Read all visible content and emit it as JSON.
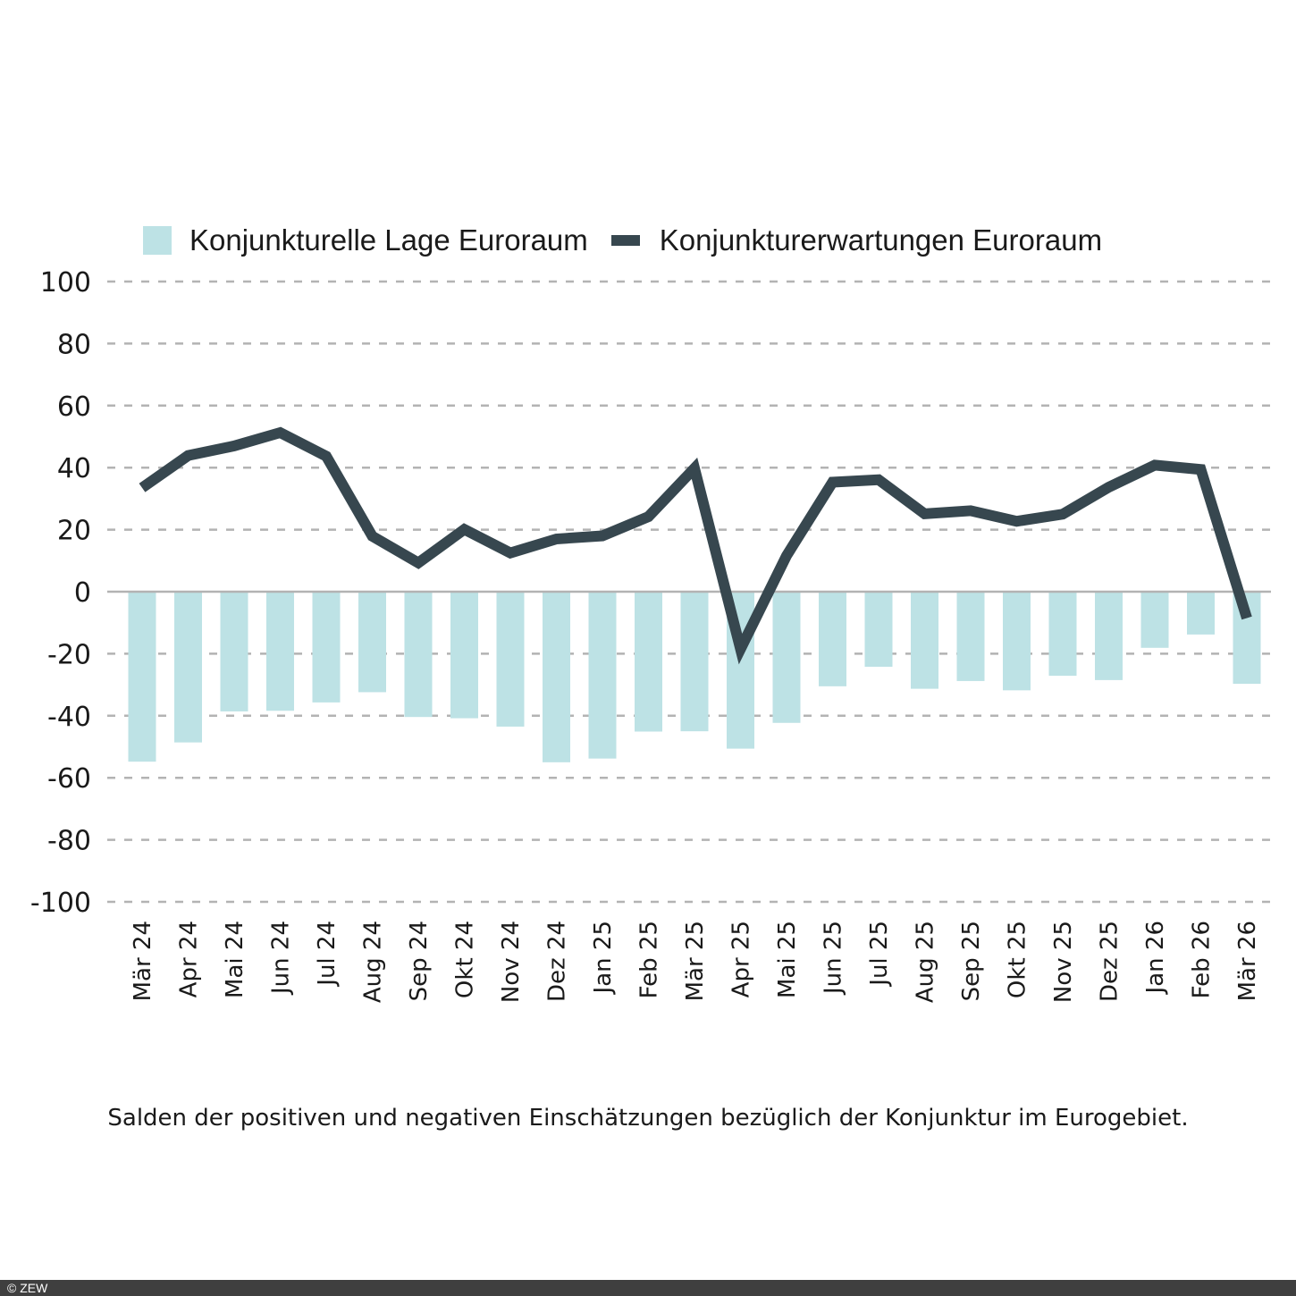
{
  "chart_data": {
    "type": "bar+line",
    "title": "",
    "xlabel": "",
    "ylabel": "",
    "ylim": [
      -100,
      100
    ],
    "yticks": [
      "100",
      "80",
      "60",
      "40",
      "20",
      "0",
      "-20",
      "-40",
      "-60",
      "-80",
      "-100"
    ],
    "ytick_values": [
      100,
      80,
      60,
      40,
      20,
      0,
      -20,
      -40,
      -60,
      -80,
      -100
    ],
    "grid": "horizontal dashed",
    "legend_position": "top",
    "categories": [
      "Mär 24",
      "Apr 24",
      "Mai 24",
      "Jun 24",
      "Jul 24",
      "Aug 24",
      "Sep 24",
      "Okt 24",
      "Nov 24",
      "Dez 24",
      "Jan 25",
      "Feb 25",
      "Mär 25",
      "Apr 25",
      "Mai 25",
      "Jun 25",
      "Jul 25",
      "Aug 25",
      "Sep 25",
      "Okt 25",
      "Nov 25",
      "Dez 25",
      "Jan 26",
      "Feb 26",
      "Mär 26"
    ],
    "series": [
      {
        "name": "Konjunkturelle Lage Euroraum",
        "type": "bar",
        "color": "#bde2e5",
        "values": [
          -54.8,
          -48.6,
          -38.6,
          -38.4,
          -35.7,
          -32.4,
          -40.4,
          -40.8,
          -43.5,
          -55.0,
          -53.8,
          -45.1,
          -45.0,
          -50.6,
          -42.3,
          -30.5,
          -24.2,
          -31.3,
          -28.8,
          -31.8,
          -27.1,
          -28.5,
          -18.1,
          -13.8,
          -29.7
        ]
      },
      {
        "name": "Konjunkturerwartungen Euroraum",
        "type": "line",
        "color": "#37474f",
        "values": [
          33.5,
          43.9,
          47.0,
          51.3,
          43.7,
          17.9,
          9.3,
          20.1,
          12.5,
          17.0,
          18.0,
          24.2,
          39.8,
          -18.5,
          11.6,
          35.3,
          36.1,
          25.1,
          26.1,
          22.7,
          25.0,
          33.7,
          40.8,
          39.4,
          -8.5
        ]
      }
    ]
  },
  "legend": {
    "items": [
      {
        "label": "Konjunkturelle Lage Euroraum",
        "color": "#bde2e5"
      },
      {
        "label": "Konjunkturerwartungen Euroraum",
        "color": "#37474f"
      }
    ]
  },
  "caption": "Salden der positiven und negativen Einschätzungen bezüglich der Konjunktur  im Eurogebiet.",
  "footer": {
    "copyright": "© ZEW"
  }
}
